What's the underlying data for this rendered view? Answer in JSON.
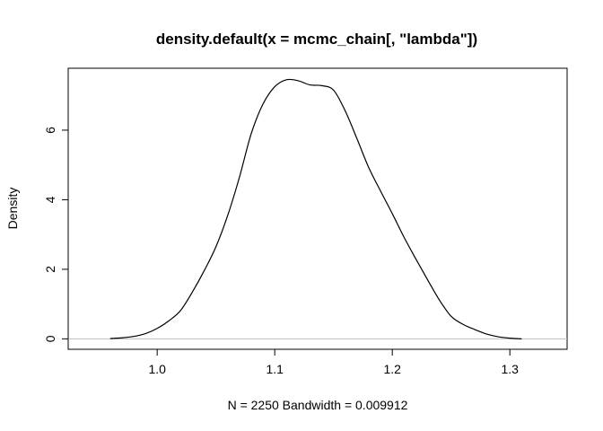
{
  "chart_data": {
    "type": "line",
    "title": "density.default(x = mcmc_chain[, \"lambda\"])",
    "xlabel": "N = 2250   Bandwidth = 0.009912",
    "ylabel": "Density",
    "xlim": [
      0.9243,
      1.3487
    ],
    "ylim": [
      -0.3,
      7.78
    ],
    "x_ticks": [
      1.0,
      1.1,
      1.2,
      1.3
    ],
    "x_tick_labels": [
      "1.0",
      "1.1",
      "1.2",
      "1.3"
    ],
    "y_ticks": [
      0,
      2,
      4,
      6
    ],
    "y_tick_labels": [
      "0",
      "2",
      "4",
      "6"
    ],
    "baseline": 0,
    "series": [
      {
        "x": [
          0.96,
          0.97,
          0.98,
          0.99,
          1.0,
          1.01,
          1.02,
          1.03,
          1.04,
          1.05,
          1.06,
          1.07,
          1.08,
          1.09,
          1.1,
          1.11,
          1.12,
          1.13,
          1.14,
          1.15,
          1.16,
          1.17,
          1.18,
          1.19,
          1.2,
          1.21,
          1.22,
          1.23,
          1.24,
          1.25,
          1.26,
          1.27,
          1.28,
          1.29,
          1.3,
          1.31
        ],
        "y": [
          0.01,
          0.03,
          0.07,
          0.15,
          0.3,
          0.52,
          0.82,
          1.35,
          1.96,
          2.65,
          3.55,
          4.65,
          5.9,
          6.75,
          7.25,
          7.45,
          7.42,
          7.3,
          7.28,
          7.15,
          6.55,
          5.75,
          4.92,
          4.25,
          3.6,
          2.92,
          2.3,
          1.7,
          1.12,
          0.65,
          0.42,
          0.27,
          0.14,
          0.06,
          0.02,
          0.0
        ]
      }
    ]
  }
}
